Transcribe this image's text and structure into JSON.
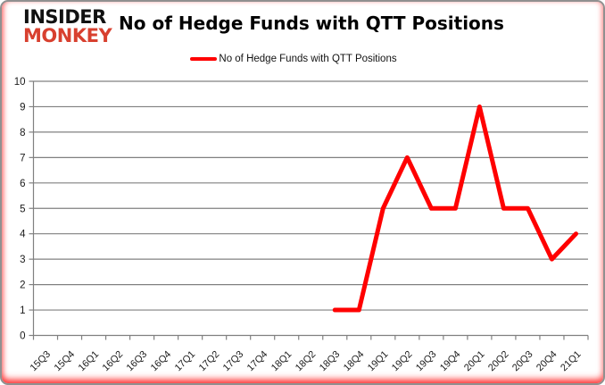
{
  "logo": {
    "line1": "INSIDER",
    "line2": "MONKEY",
    "line1_color": "#111111",
    "line2_color": "#d8402f"
  },
  "header": {
    "title": "No of Hedge Funds with QTT Positions"
  },
  "legend": {
    "label": "No of Hedge Funds with QTT Positions",
    "swatch_color": "#ff0000"
  },
  "chart_data": {
    "type": "line",
    "title": "No of Hedge Funds with QTT Positions",
    "categories": [
      "15Q3",
      "15Q4",
      "16Q1",
      "16Q2",
      "16Q3",
      "16Q4",
      "17Q1",
      "17Q2",
      "17Q3",
      "17Q4",
      "18Q1",
      "18Q2",
      "18Q3",
      "18Q4",
      "19Q1",
      "19Q2",
      "19Q3",
      "19Q4",
      "20Q1",
      "20Q2",
      "20Q3",
      "20Q4",
      "21Q1"
    ],
    "series": [
      {
        "name": "No of Hedge Funds with QTT Positions",
        "color": "#ff0000",
        "values": [
          null,
          null,
          null,
          null,
          null,
          null,
          null,
          null,
          null,
          null,
          null,
          null,
          1,
          1,
          5,
          7,
          5,
          5,
          9,
          5,
          5,
          3,
          4
        ]
      }
    ],
    "ylim": [
      0,
      10
    ],
    "yticks": [
      0,
      1,
      2,
      3,
      4,
      5,
      6,
      7,
      8,
      9,
      10
    ],
    "grid": true,
    "legend_position": "top",
    "gridline_color": "#808080",
    "axis_color": "#808080",
    "tick_label_color": "#1a1a1a"
  }
}
